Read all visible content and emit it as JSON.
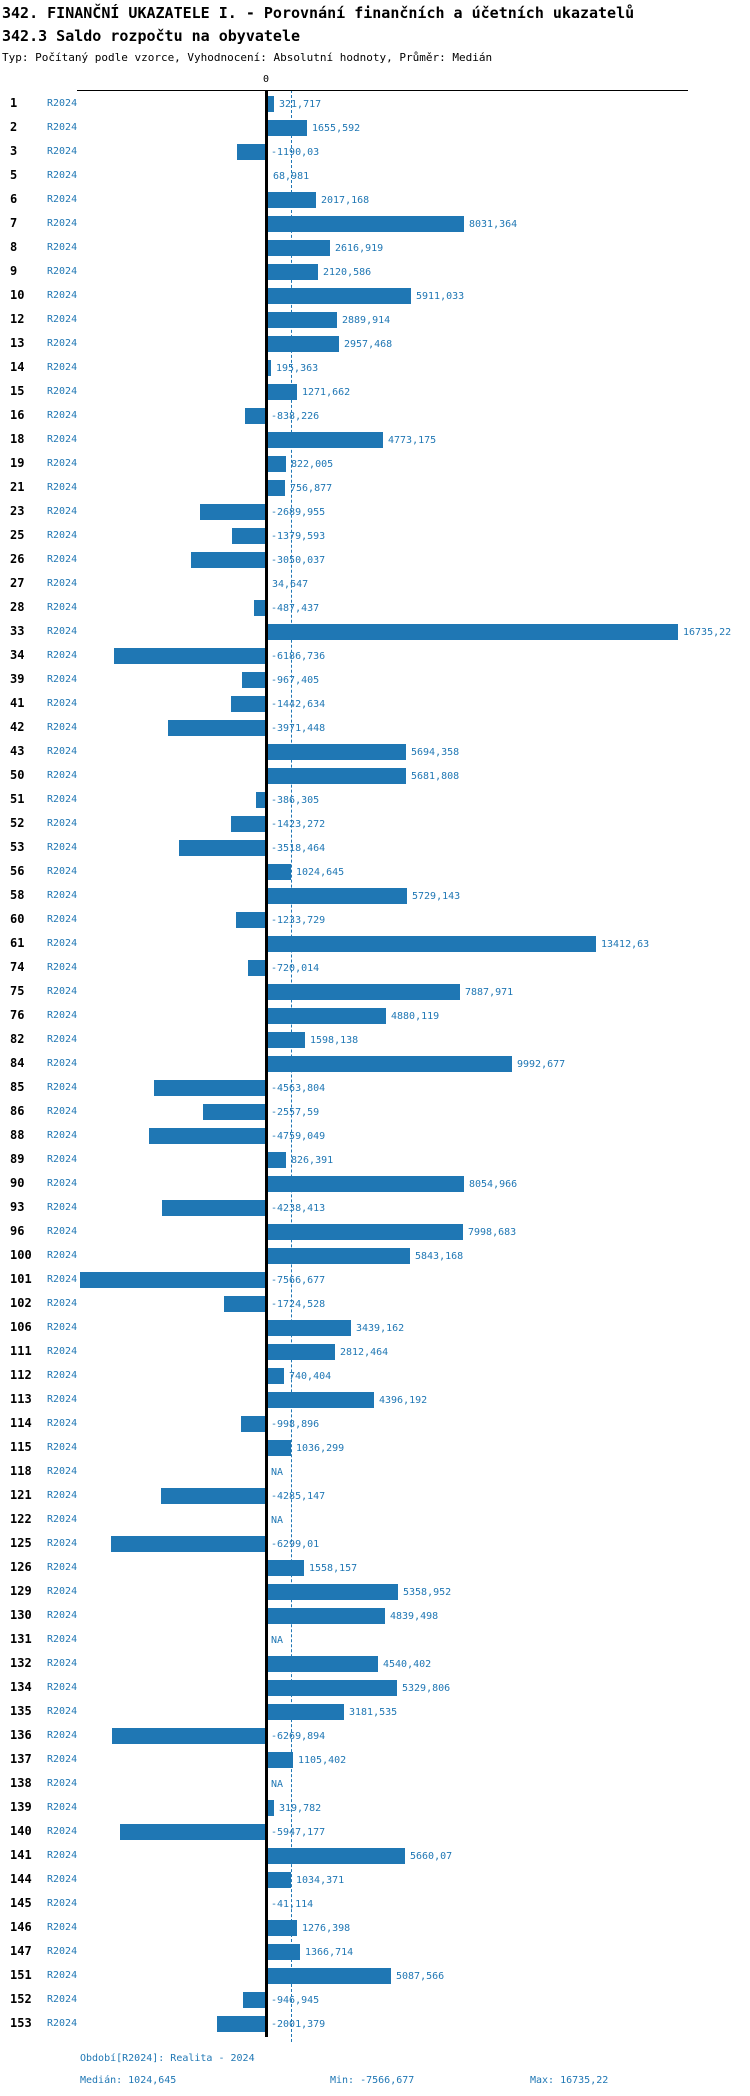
{
  "header": {
    "title_line1": "342. FINANČNÍ UKAZATELE I. - Porovnání finančních a účetních ukazatelů",
    "title_line2": "342.3 Saldo rozpočtu na obyvatele",
    "subtitle": "Typ: Počítaný podle vzorce, Vyhodnocení: Absolutní hodnoty, Průměr: Medián"
  },
  "axis": {
    "zero_label": "0"
  },
  "footer": {
    "period": "Období[R2024]: Realita - 2024",
    "median": "Medián: 1024,645",
    "min": "Min: -7566,677",
    "max": "Max: 16735,22"
  },
  "colors": {
    "bar": "#1f77b4",
    "blue_text": "#1f77b4",
    "axis": "#000000"
  },
  "chart_data": {
    "type": "bar",
    "orientation": "horizontal",
    "title": "342.3 Saldo rozpočtu na obyvatele",
    "series_name": "R2024",
    "xlim": [
      -7700,
      17100
    ],
    "zero_line": 0,
    "median_value": 1024.645,
    "min_value": -7566.677,
    "max_value": 16735.22,
    "na_label": "NA",
    "rows": [
      {
        "id": "1",
        "period": "R2024",
        "value": 321.717,
        "label": "321,717"
      },
      {
        "id": "2",
        "period": "R2024",
        "value": 1655.592,
        "label": "1655,592"
      },
      {
        "id": "3",
        "period": "R2024",
        "value": -1190.03,
        "label": "-1190,03"
      },
      {
        "id": "5",
        "period": "R2024",
        "value": 68.981,
        "label": "68,981"
      },
      {
        "id": "6",
        "period": "R2024",
        "value": 2017.168,
        "label": "2017,168"
      },
      {
        "id": "7",
        "period": "R2024",
        "value": 8031.364,
        "label": "8031,364"
      },
      {
        "id": "8",
        "period": "R2024",
        "value": 2616.919,
        "label": "2616,919"
      },
      {
        "id": "9",
        "period": "R2024",
        "value": 2120.586,
        "label": "2120,586"
      },
      {
        "id": "10",
        "period": "R2024",
        "value": 5911.033,
        "label": "5911,033"
      },
      {
        "id": "12",
        "period": "R2024",
        "value": 2889.914,
        "label": "2889,914"
      },
      {
        "id": "13",
        "period": "R2024",
        "value": 2957.468,
        "label": "2957,468"
      },
      {
        "id": "14",
        "period": "R2024",
        "value": 195.363,
        "label": "195,363"
      },
      {
        "id": "15",
        "period": "R2024",
        "value": 1271.662,
        "label": "1271,662"
      },
      {
        "id": "16",
        "period": "R2024",
        "value": -838.226,
        "label": "-838,226"
      },
      {
        "id": "18",
        "period": "R2024",
        "value": 4773.175,
        "label": "4773,175"
      },
      {
        "id": "19",
        "period": "R2024",
        "value": 822.005,
        "label": "822,005"
      },
      {
        "id": "21",
        "period": "R2024",
        "value": 756.877,
        "label": "756,877"
      },
      {
        "id": "23",
        "period": "R2024",
        "value": -2689.955,
        "label": "-2689,955"
      },
      {
        "id": "25",
        "period": "R2024",
        "value": -1379.593,
        "label": "-1379,593"
      },
      {
        "id": "26",
        "period": "R2024",
        "value": -3050.037,
        "label": "-3050,037"
      },
      {
        "id": "27",
        "period": "R2024",
        "value": 34.647,
        "label": "34,647"
      },
      {
        "id": "28",
        "period": "R2024",
        "value": -487.437,
        "label": "-487,437"
      },
      {
        "id": "33",
        "period": "R2024",
        "value": 16735.22,
        "label": "16735,22"
      },
      {
        "id": "34",
        "period": "R2024",
        "value": -6186.736,
        "label": "-6186,736"
      },
      {
        "id": "39",
        "period": "R2024",
        "value": -967.405,
        "label": "-967,405"
      },
      {
        "id": "41",
        "period": "R2024",
        "value": -1442.634,
        "label": "-1442,634"
      },
      {
        "id": "42",
        "period": "R2024",
        "value": -3971.448,
        "label": "-3971,448"
      },
      {
        "id": "43",
        "period": "R2024",
        "value": 5694.358,
        "label": "5694,358"
      },
      {
        "id": "50",
        "period": "R2024",
        "value": 5681.808,
        "label": "5681,808"
      },
      {
        "id": "51",
        "period": "R2024",
        "value": -386.305,
        "label": "-386,305"
      },
      {
        "id": "52",
        "period": "R2024",
        "value": -1423.272,
        "label": "-1423,272"
      },
      {
        "id": "53",
        "period": "R2024",
        "value": -3518.464,
        "label": "-3518,464"
      },
      {
        "id": "56",
        "period": "R2024",
        "value": 1024.645,
        "label": "1024,645"
      },
      {
        "id": "58",
        "period": "R2024",
        "value": 5729.143,
        "label": "5729,143"
      },
      {
        "id": "60",
        "period": "R2024",
        "value": -1233.729,
        "label": "-1233,729"
      },
      {
        "id": "61",
        "period": "R2024",
        "value": 13412.63,
        "label": "13412,63"
      },
      {
        "id": "74",
        "period": "R2024",
        "value": -720.014,
        "label": "-720,014"
      },
      {
        "id": "75",
        "period": "R2024",
        "value": 7887.971,
        "label": "7887,971"
      },
      {
        "id": "76",
        "period": "R2024",
        "value": 4880.119,
        "label": "4880,119"
      },
      {
        "id": "82",
        "period": "R2024",
        "value": 1598.138,
        "label": "1598,138"
      },
      {
        "id": "84",
        "period": "R2024",
        "value": 9992.677,
        "label": "9992,677"
      },
      {
        "id": "85",
        "period": "R2024",
        "value": -4563.804,
        "label": "-4563,804"
      },
      {
        "id": "86",
        "period": "R2024",
        "value": -2557.59,
        "label": "-2557,59"
      },
      {
        "id": "88",
        "period": "R2024",
        "value": -4759.049,
        "label": "-4759,049"
      },
      {
        "id": "89",
        "period": "R2024",
        "value": 826.391,
        "label": "826,391"
      },
      {
        "id": "90",
        "period": "R2024",
        "value": 8054.966,
        "label": "8054,966"
      },
      {
        "id": "93",
        "period": "R2024",
        "value": -4238.413,
        "label": "-4238,413"
      },
      {
        "id": "96",
        "period": "R2024",
        "value": 7998.683,
        "label": "7998,683"
      },
      {
        "id": "100",
        "period": "R2024",
        "value": 5843.168,
        "label": "5843,168"
      },
      {
        "id": "101",
        "period": "R2024",
        "value": -7566.677,
        "label": "-7566,677"
      },
      {
        "id": "102",
        "period": "R2024",
        "value": -1724.528,
        "label": "-1724,528"
      },
      {
        "id": "106",
        "period": "R2024",
        "value": 3439.162,
        "label": "3439,162"
      },
      {
        "id": "111",
        "period": "R2024",
        "value": 2812.464,
        "label": "2812,464"
      },
      {
        "id": "112",
        "period": "R2024",
        "value": 740.404,
        "label": "740,404"
      },
      {
        "id": "113",
        "period": "R2024",
        "value": 4396.192,
        "label": "4396,192"
      },
      {
        "id": "114",
        "period": "R2024",
        "value": -998.896,
        "label": "-998,896"
      },
      {
        "id": "115",
        "period": "R2024",
        "value": 1036.299,
        "label": "1036,299"
      },
      {
        "id": "118",
        "period": "R2024",
        "value": null,
        "label": "NA"
      },
      {
        "id": "121",
        "period": "R2024",
        "value": -4285.147,
        "label": "-4285,147"
      },
      {
        "id": "122",
        "period": "R2024",
        "value": null,
        "label": "NA"
      },
      {
        "id": "125",
        "period": "R2024",
        "value": -6299.01,
        "label": "-6299,01"
      },
      {
        "id": "126",
        "period": "R2024",
        "value": 1558.157,
        "label": "1558,157"
      },
      {
        "id": "129",
        "period": "R2024",
        "value": 5358.952,
        "label": "5358,952"
      },
      {
        "id": "130",
        "period": "R2024",
        "value": 4839.498,
        "label": "4839,498"
      },
      {
        "id": "131",
        "period": "R2024",
        "value": null,
        "label": "NA"
      },
      {
        "id": "132",
        "period": "R2024",
        "value": 4540.402,
        "label": "4540,402"
      },
      {
        "id": "134",
        "period": "R2024",
        "value": 5329.806,
        "label": "5329,806"
      },
      {
        "id": "135",
        "period": "R2024",
        "value": 3181.535,
        "label": "3181,535"
      },
      {
        "id": "136",
        "period": "R2024",
        "value": -6269.894,
        "label": "-6269,894"
      },
      {
        "id": "137",
        "period": "R2024",
        "value": 1105.402,
        "label": "1105,402"
      },
      {
        "id": "138",
        "period": "R2024",
        "value": null,
        "label": "NA"
      },
      {
        "id": "139",
        "period": "R2024",
        "value": 319.782,
        "label": "319,782"
      },
      {
        "id": "140",
        "period": "R2024",
        "value": -5947.177,
        "label": "-5947,177"
      },
      {
        "id": "141",
        "period": "R2024",
        "value": 5660.07,
        "label": "5660,07"
      },
      {
        "id": "144",
        "period": "R2024",
        "value": 1034.371,
        "label": "1034,371"
      },
      {
        "id": "145",
        "period": "R2024",
        "value": -41.114,
        "label": "-41,114"
      },
      {
        "id": "146",
        "period": "R2024",
        "value": 1276.398,
        "label": "1276,398"
      },
      {
        "id": "147",
        "period": "R2024",
        "value": 1366.714,
        "label": "1366,714"
      },
      {
        "id": "151",
        "period": "R2024",
        "value": 5087.566,
        "label": "5087,566"
      },
      {
        "id": "152",
        "period": "R2024",
        "value": -946.945,
        "label": "-946,945"
      },
      {
        "id": "153",
        "period": "R2024",
        "value": -2001.379,
        "label": "-2001,379"
      }
    ]
  }
}
